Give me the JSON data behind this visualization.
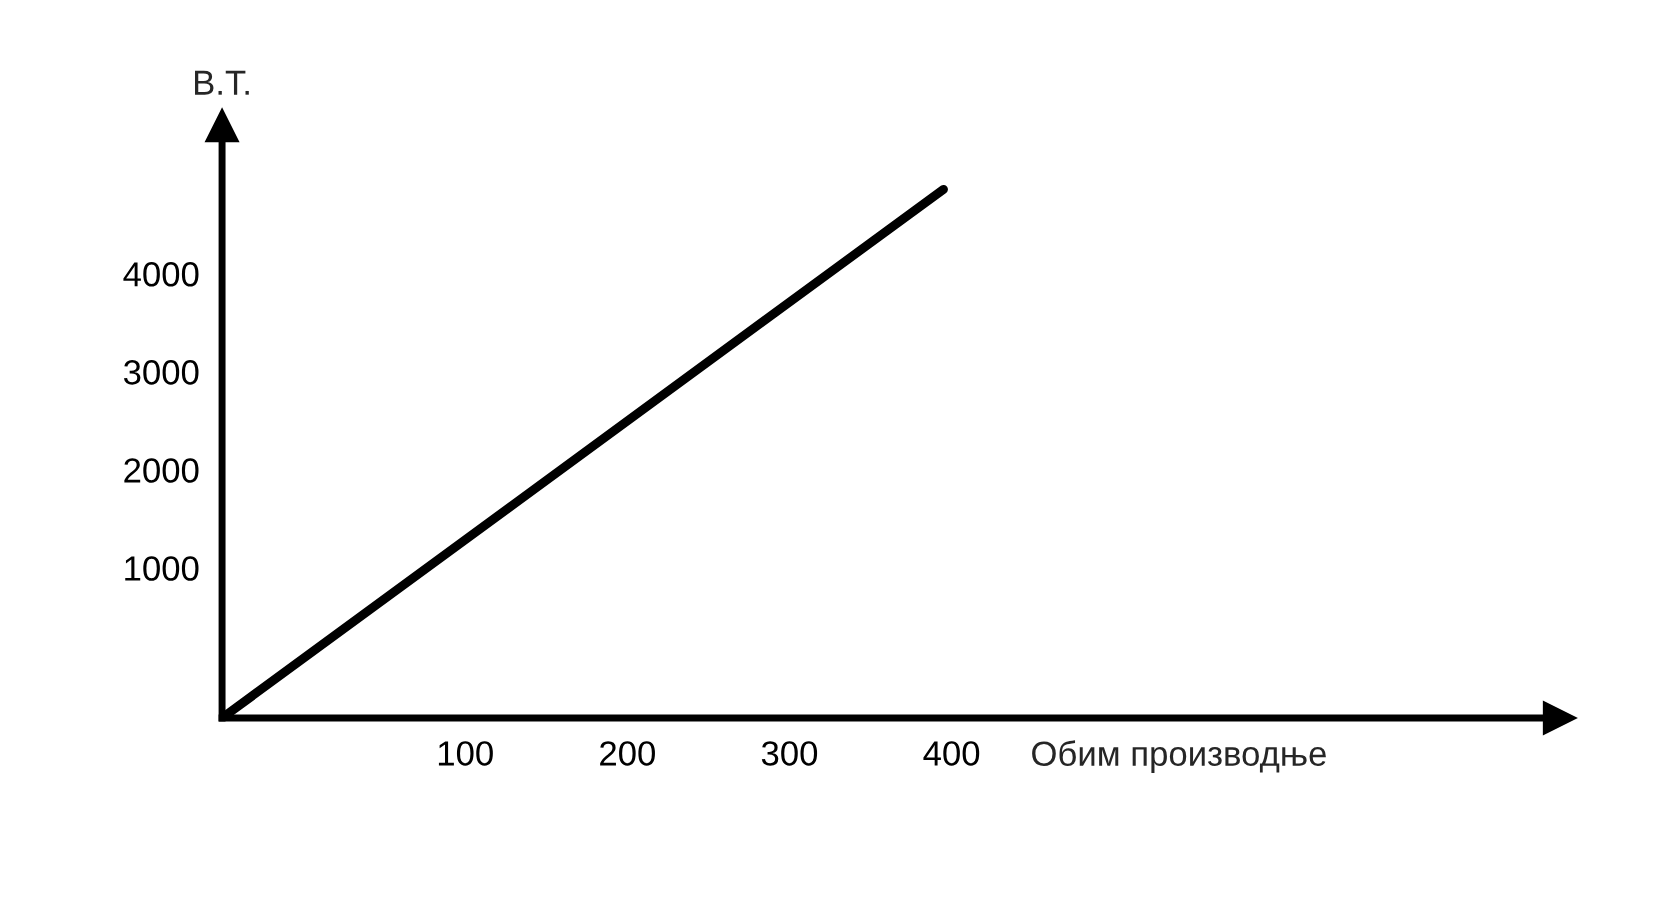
{
  "chart_data": {
    "type": "line",
    "ylabel": "В.Т.",
    "xlabel": "Обим производње",
    "x": [
      -50,
      395
    ],
    "series": [
      {
        "color": "#000000",
        "values": [
          -530,
          4860
        ]
      }
    ],
    "xlim": [
      -50,
      775
    ],
    "ylim": [
      -530,
      5510
    ],
    "xticks": [
      100,
      200,
      300,
      400
    ],
    "yticks": [
      1000,
      2000,
      3000,
      4000
    ],
    "grid": false,
    "legend": false,
    "marker": "none",
    "line_style": "solid"
  }
}
